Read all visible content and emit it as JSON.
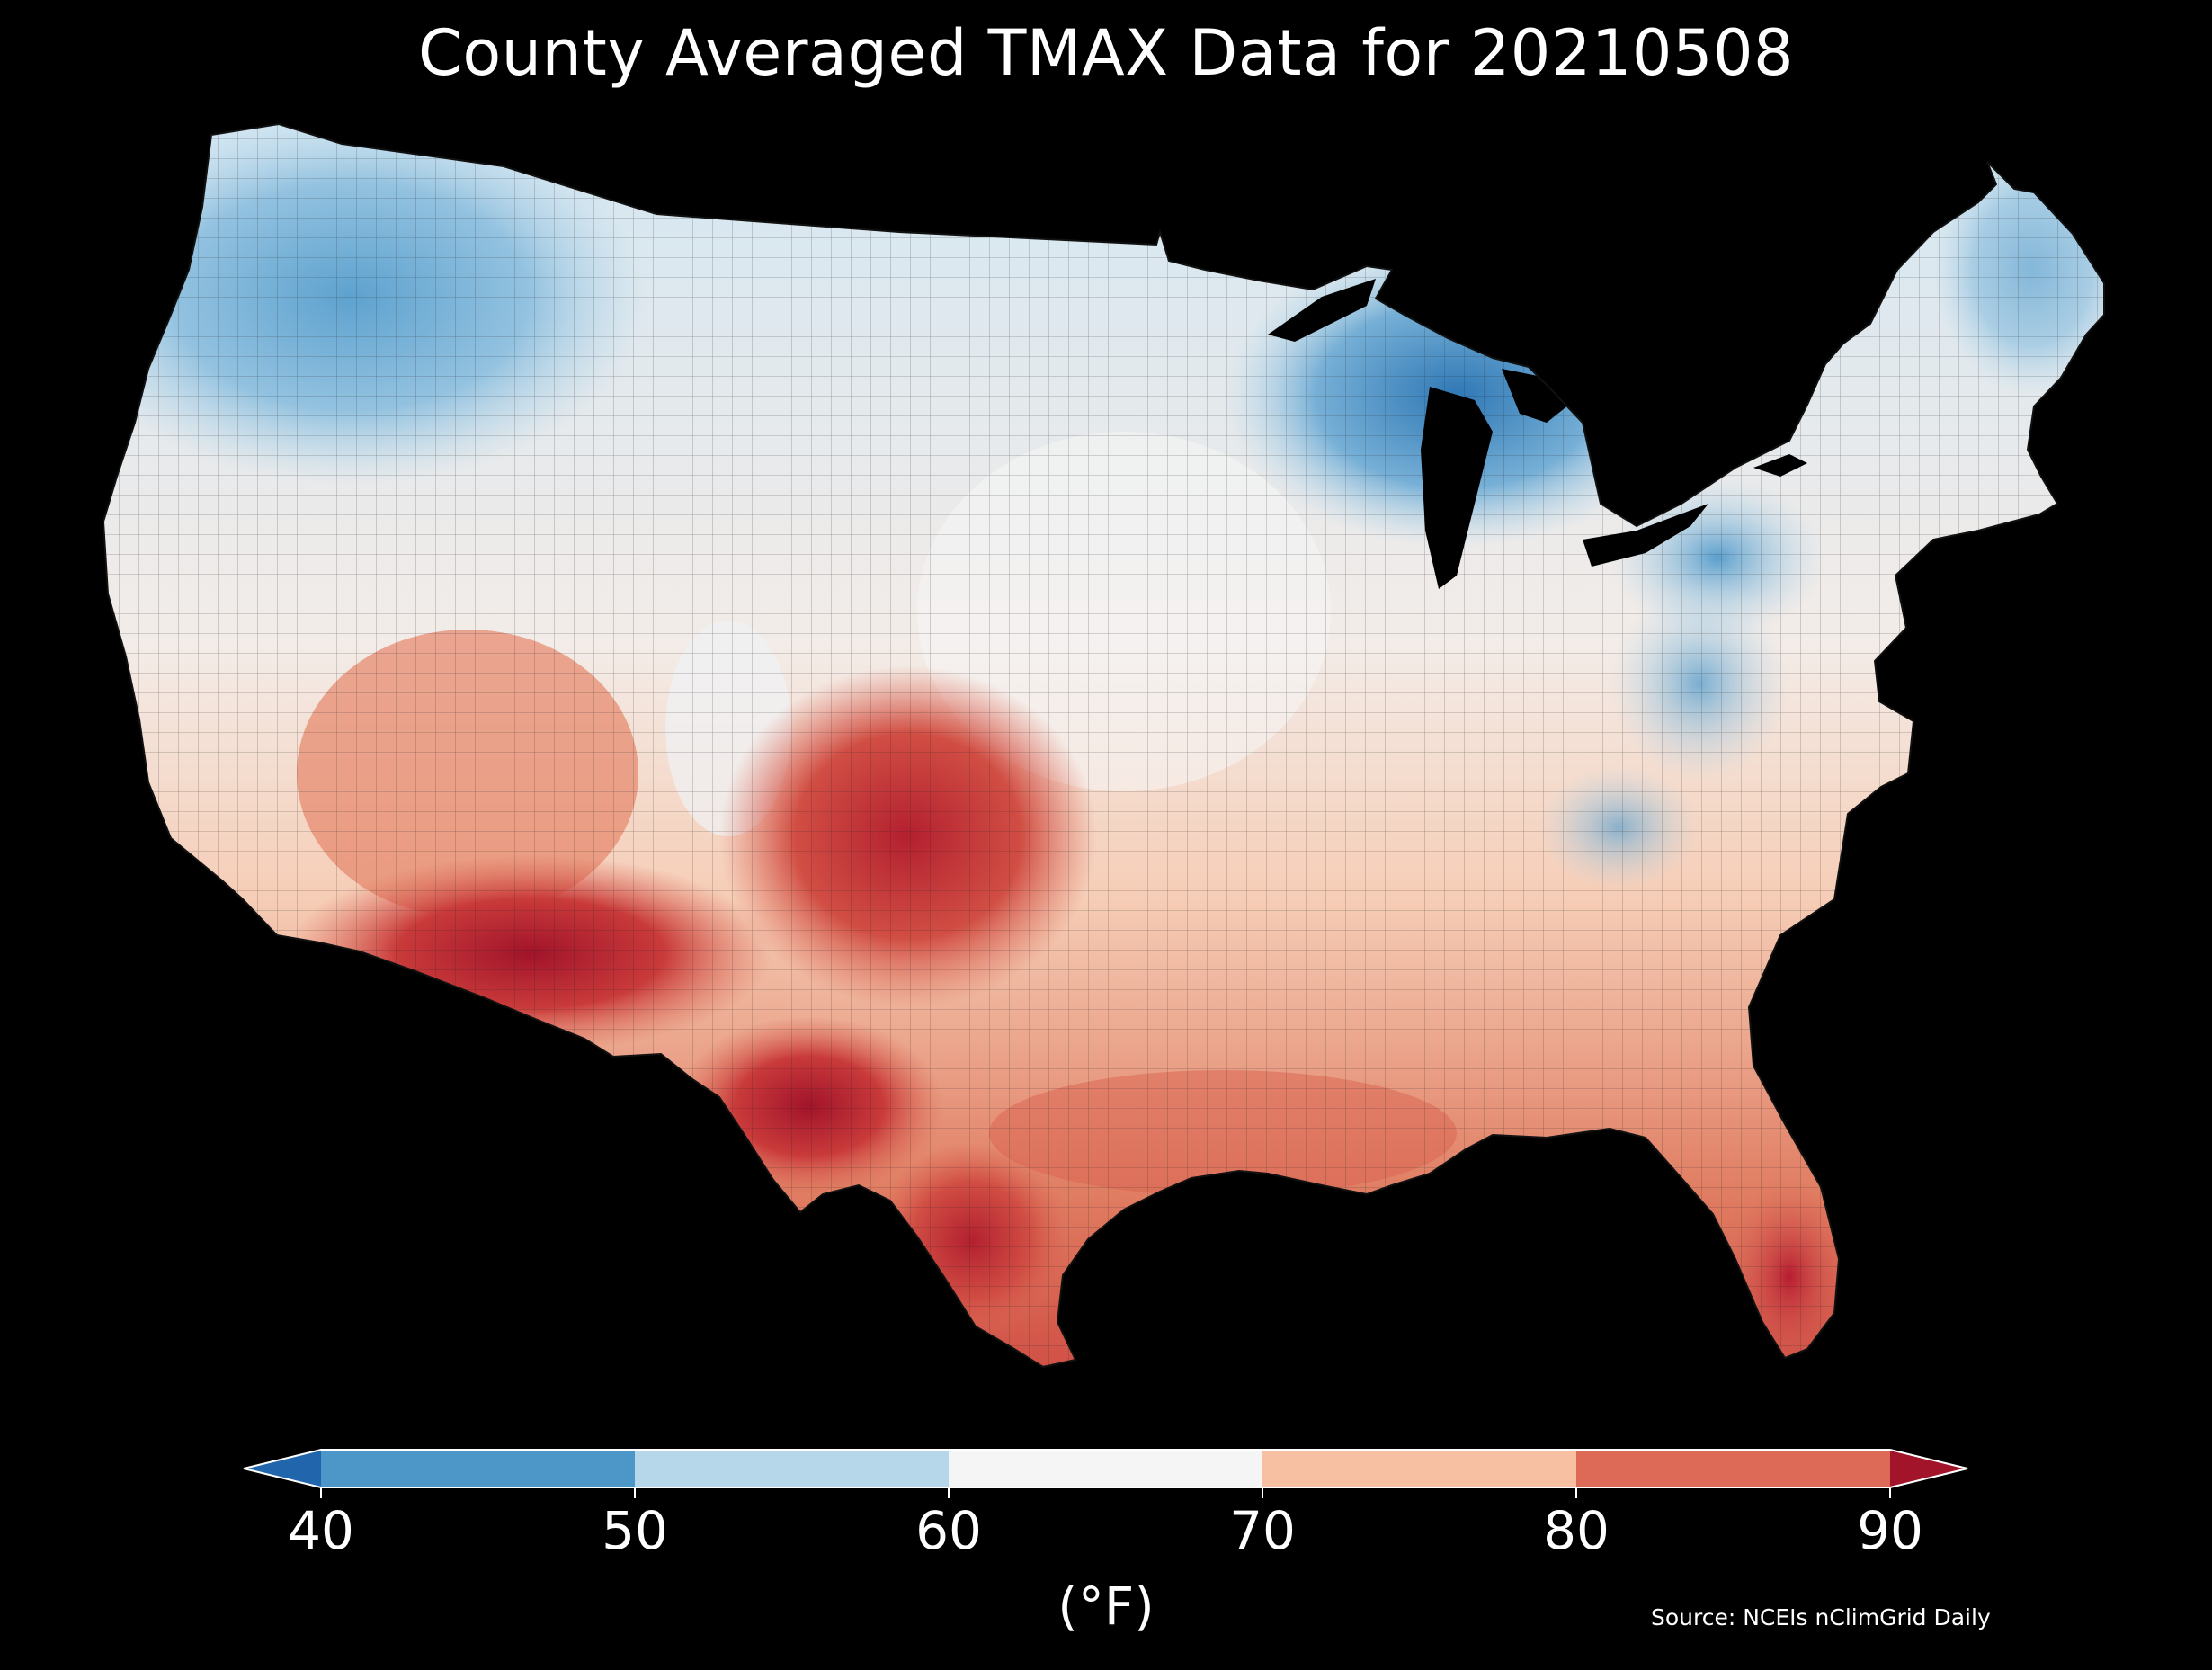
{
  "title": "County Averaged TMAX Data for 20210508",
  "legend": {
    "unit": "(°F)",
    "ticks": [
      "40",
      "50",
      "60",
      "70",
      "80",
      "90"
    ],
    "bins": [
      {
        "from": "below 40",
        "color": "#2166ac"
      },
      {
        "from": "40",
        "to": "50",
        "color": "#4d96c8"
      },
      {
        "from": "50",
        "to": "60",
        "color": "#b6d7ea"
      },
      {
        "from": "60",
        "to": "70",
        "color": "#f5f5f5"
      },
      {
        "from": "70",
        "to": "80",
        "color": "#f8c0a3"
      },
      {
        "from": "80",
        "to": "90",
        "color": "#dc6a57"
      },
      {
        "from": "above 90",
        "color": "#a1142a"
      }
    ],
    "extend": "both"
  },
  "source": "Source: NCEIs nClimGrid Daily",
  "colors": {
    "background": "#000000",
    "border": "#1a1a1a"
  }
}
